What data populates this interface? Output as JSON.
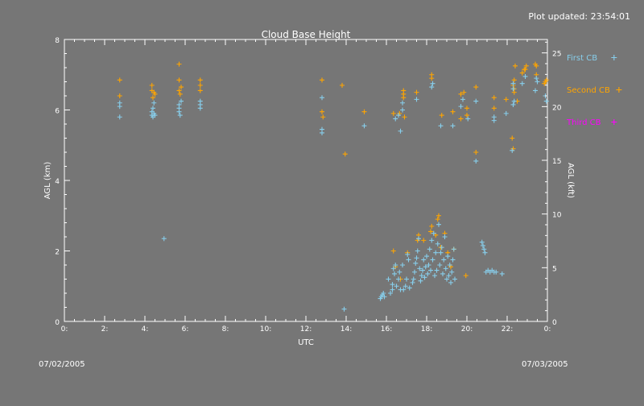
{
  "header": {
    "updated": "Plot updated: 23:54:01"
  },
  "footer": {
    "date_left": "07/02/2005",
    "date_right": "07/03/2005"
  },
  "chart_data": {
    "type": "scatter",
    "title": "Cloud Base Height",
    "xlabel": "UTC",
    "ylabel": "AGL (km)",
    "y2label": "AGL (kft)",
    "xlim": [
      0,
      24
    ],
    "ylim": [
      0,
      8
    ],
    "y2lim": [
      0,
      26.25
    ],
    "xticks": [
      "0:",
      "2:",
      "4:",
      "6:",
      "8:",
      "10:",
      "12:",
      "14:",
      "16:",
      "18:",
      "20:",
      "22:",
      "0:"
    ],
    "yticks": [
      "0",
      "2",
      "4",
      "6",
      "8"
    ],
    "y2ticks": [
      "0",
      "5",
      "10",
      "15",
      "20",
      "25"
    ],
    "grid": false,
    "legend_position": "right",
    "series": [
      {
        "name": "First CB",
        "color": "#87ceeb",
        "points": [
          [
            2.75,
            5.8
          ],
          [
            2.75,
            6.1
          ],
          [
            2.75,
            6.2
          ],
          [
            4.35,
            5.85
          ],
          [
            4.35,
            5.95
          ],
          [
            4.4,
            5.8
          ],
          [
            4.4,
            6.05
          ],
          [
            4.45,
            5.9
          ],
          [
            4.45,
            6.2
          ],
          [
            4.5,
            5.85
          ],
          [
            4.95,
            2.35
          ],
          [
            5.7,
            5.95
          ],
          [
            5.7,
            6.05
          ],
          [
            5.7,
            6.15
          ],
          [
            5.75,
            5.85
          ],
          [
            5.8,
            6.25
          ],
          [
            6.75,
            6.05
          ],
          [
            6.75,
            6.15
          ],
          [
            6.75,
            6.25
          ],
          [
            12.8,
            5.45
          ],
          [
            12.8,
            5.35
          ],
          [
            12.8,
            6.35
          ],
          [
            13.9,
            0.35
          ],
          [
            14.9,
            5.55
          ],
          [
            16.45,
            5.75
          ],
          [
            16.6,
            5.85
          ],
          [
            16.8,
            6.0
          ],
          [
            16.8,
            6.2
          ],
          [
            16.7,
            5.4
          ],
          [
            17.5,
            6.3
          ],
          [
            18.25,
            6.65
          ],
          [
            18.3,
            6.75
          ],
          [
            18.7,
            5.55
          ],
          [
            19.3,
            5.55
          ],
          [
            19.7,
            6.1
          ],
          [
            19.8,
            6.3
          ],
          [
            20.05,
            5.75
          ],
          [
            20.45,
            4.55
          ],
          [
            20.45,
            6.25
          ],
          [
            21.35,
            5.7
          ],
          [
            21.35,
            5.8
          ],
          [
            21.95,
            5.9
          ],
          [
            22.25,
            4.85
          ],
          [
            22.3,
            6.15
          ],
          [
            22.35,
            6.25
          ],
          [
            22.3,
            6.6
          ],
          [
            22.3,
            6.75
          ],
          [
            22.75,
            6.75
          ],
          [
            22.9,
            6.95
          ],
          [
            23.4,
            6.55
          ],
          [
            23.45,
            6.9
          ],
          [
            23.5,
            6.8
          ],
          [
            23.9,
            6.4
          ],
          [
            23.95,
            6.25
          ],
          [
            15.7,
            0.65
          ],
          [
            15.75,
            0.7
          ],
          [
            15.8,
            0.75
          ],
          [
            15.85,
            0.8
          ],
          [
            15.9,
            0.7
          ],
          [
            16.2,
            0.8
          ],
          [
            16.3,
            0.9
          ],
          [
            16.1,
            1.2
          ],
          [
            16.3,
            1.05
          ],
          [
            16.35,
            1.5
          ],
          [
            16.4,
            1.35
          ],
          [
            16.45,
            1.6
          ],
          [
            16.5,
            1.0
          ],
          [
            16.6,
            1.2
          ],
          [
            16.65,
            1.4
          ],
          [
            16.7,
            0.9
          ],
          [
            16.8,
            1.6
          ],
          [
            16.85,
            0.9
          ],
          [
            16.95,
            1.0
          ],
          [
            17.0,
            1.2
          ],
          [
            17.05,
            1.9
          ],
          [
            17.1,
            1.75
          ],
          [
            17.15,
            0.95
          ],
          [
            17.3,
            1.1
          ],
          [
            17.35,
            1.2
          ],
          [
            17.4,
            1.4
          ],
          [
            17.45,
            1.65
          ],
          [
            17.5,
            1.8
          ],
          [
            17.55,
            2.0
          ],
          [
            17.6,
            2.35
          ],
          [
            17.65,
            1.5
          ],
          [
            17.7,
            1.15
          ],
          [
            17.75,
            1.3
          ],
          [
            17.8,
            1.45
          ],
          [
            17.85,
            1.75
          ],
          [
            17.9,
            1.25
          ],
          [
            17.95,
            1.55
          ],
          [
            18.0,
            1.85
          ],
          [
            18.05,
            1.35
          ],
          [
            18.1,
            1.6
          ],
          [
            18.15,
            2.05
          ],
          [
            18.2,
            1.45
          ],
          [
            18.25,
            2.3
          ],
          [
            18.3,
            1.75
          ],
          [
            18.35,
            2.5
          ],
          [
            18.4,
            1.3
          ],
          [
            18.45,
            1.95
          ],
          [
            18.5,
            1.45
          ],
          [
            18.55,
            2.2
          ],
          [
            18.6,
            2.75
          ],
          [
            18.65,
            1.6
          ],
          [
            18.7,
            1.95
          ],
          [
            18.75,
            2.1
          ],
          [
            18.8,
            1.35
          ],
          [
            18.85,
            1.75
          ],
          [
            18.9,
            2.4
          ],
          [
            18.95,
            1.5
          ],
          [
            19.0,
            1.2
          ],
          [
            19.05,
            1.85
          ],
          [
            19.1,
            1.3
          ],
          [
            19.15,
            1.6
          ],
          [
            19.2,
            1.1
          ],
          [
            19.25,
            1.4
          ],
          [
            19.3,
            1.75
          ],
          [
            19.35,
            2.05
          ],
          [
            19.4,
            1.2
          ],
          [
            20.75,
            2.25
          ],
          [
            20.8,
            2.15
          ],
          [
            20.85,
            2.05
          ],
          [
            20.9,
            1.95
          ],
          [
            20.95,
            1.4
          ],
          [
            21.05,
            1.45
          ],
          [
            21.15,
            1.4
          ],
          [
            21.25,
            1.45
          ],
          [
            21.35,
            1.4
          ],
          [
            21.45,
            1.4
          ],
          [
            21.75,
            1.35
          ]
        ]
      },
      {
        "name": "Second CB",
        "color": "#ffa500",
        "points": [
          [
            2.75,
            6.85
          ],
          [
            2.75,
            6.4
          ],
          [
            4.35,
            6.55
          ],
          [
            4.35,
            6.7
          ],
          [
            4.4,
            6.35
          ],
          [
            4.45,
            6.5
          ],
          [
            4.5,
            6.45
          ],
          [
            5.7,
            6.55
          ],
          [
            5.7,
            6.85
          ],
          [
            5.7,
            7.3
          ],
          [
            5.75,
            6.45
          ],
          [
            5.8,
            6.65
          ],
          [
            6.75,
            6.55
          ],
          [
            6.75,
            6.7
          ],
          [
            6.75,
            6.85
          ],
          [
            12.8,
            6.85
          ],
          [
            12.8,
            5.95
          ],
          [
            12.85,
            5.8
          ],
          [
            13.8,
            6.7
          ],
          [
            13.95,
            4.75
          ],
          [
            14.9,
            5.95
          ],
          [
            16.35,
            5.9
          ],
          [
            16.65,
            5.9
          ],
          [
            16.85,
            6.35
          ],
          [
            16.85,
            6.45
          ],
          [
            16.85,
            6.55
          ],
          [
            16.9,
            5.8
          ],
          [
            17.5,
            6.5
          ],
          [
            18.25,
            6.9
          ],
          [
            18.25,
            7.0
          ],
          [
            18.75,
            5.85
          ],
          [
            19.3,
            5.95
          ],
          [
            19.7,
            5.75
          ],
          [
            19.7,
            6.45
          ],
          [
            19.85,
            6.5
          ],
          [
            20.0,
            5.85
          ],
          [
            20.45,
            6.65
          ],
          [
            20.45,
            4.8
          ],
          [
            20.0,
            6.05
          ],
          [
            21.35,
            6.05
          ],
          [
            21.35,
            6.35
          ],
          [
            21.95,
            6.3
          ],
          [
            22.25,
            5.2
          ],
          [
            22.3,
            4.9
          ],
          [
            22.35,
            6.5
          ],
          [
            22.3,
            6.7
          ],
          [
            22.35,
            6.85
          ],
          [
            22.35,
            6.6
          ],
          [
            22.4,
            7.25
          ],
          [
            22.75,
            7.05
          ],
          [
            22.85,
            7.15
          ],
          [
            22.9,
            7.15
          ],
          [
            23.4,
            7.3
          ],
          [
            23.45,
            7.25
          ],
          [
            23.45,
            7.0
          ],
          [
            23.85,
            6.75
          ],
          [
            23.9,
            6.8
          ],
          [
            23.95,
            6.85
          ],
          [
            22.5,
            6.25
          ],
          [
            22.95,
            7.25
          ],
          [
            16.35,
            2.0
          ],
          [
            16.45,
            1.55
          ],
          [
            16.7,
            1.2
          ],
          [
            17.05,
            1.95
          ],
          [
            17.55,
            2.3
          ],
          [
            17.6,
            2.45
          ],
          [
            17.85,
            2.3
          ],
          [
            18.2,
            2.55
          ],
          [
            18.25,
            2.7
          ],
          [
            18.55,
            2.9
          ],
          [
            18.6,
            3.0
          ],
          [
            18.45,
            2.45
          ],
          [
            18.7,
            2.1
          ],
          [
            18.9,
            2.5
          ],
          [
            19.05,
            1.95
          ],
          [
            19.35,
            2.05
          ],
          [
            19.2,
            1.55
          ],
          [
            19.95,
            1.3
          ]
        ]
      },
      {
        "name": "Third CB",
        "color": "#ff00ff",
        "points": []
      }
    ]
  }
}
